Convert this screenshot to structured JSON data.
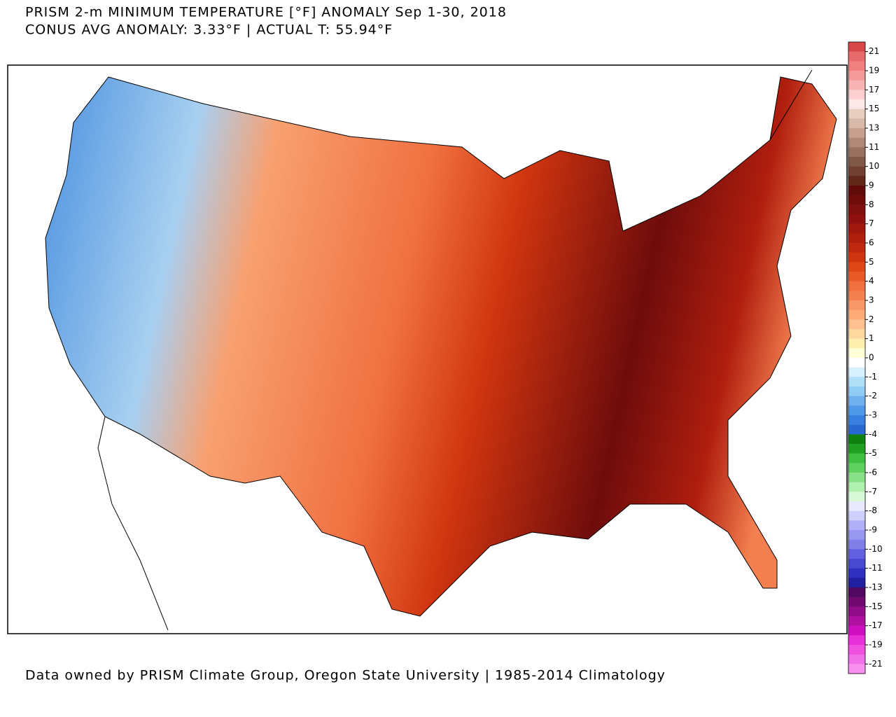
{
  "header": {
    "title": "PRISM 2-m MINIMUM TEMPERATURE [°F] ANOMALY Sep 1-30, 2018",
    "subtitle": "CONUS AVG ANOMALY: 3.33°F | ACTUAL T: 55.94°F"
  },
  "footer": "Data owned by PRISM Climate Group, Oregon State University | 1985-2014 Climatology",
  "legend": {
    "labels": [
      21,
      19,
      17,
      15,
      13,
      11,
      10,
      9,
      8,
      7,
      6,
      5,
      4,
      3,
      2,
      1,
      0,
      -1,
      -2,
      -3,
      -4,
      -5,
      -6,
      -7,
      -8,
      -9,
      -10,
      -11,
      -13,
      -15,
      -17,
      -19,
      -21
    ],
    "colors": [
      "#d84848",
      "#e86a6a",
      "#f08080",
      "#f59a9a",
      "#f8b4b4",
      "#fcd0d0",
      "#fde8e8",
      "#e8cfc0",
      "#d8b8a8",
      "#c8a090",
      "#b08878",
      "#987060",
      "#805848",
      "#704030",
      "#602818",
      "#600a0a",
      "#6e0c0c",
      "#800f0f",
      "#901010",
      "#a01810",
      "#b01e0e",
      "#c02810",
      "#d0350f",
      "#e04818",
      "#e85a28",
      "#f07040",
      "#f48050",
      "#f89868",
      "#fcaa78",
      "#fec090",
      "#ffd8a0",
      "#fff0b0",
      "#ffffd8",
      "#ffffff",
      "#d8f0ff",
      "#b0e0f8",
      "#90ccf4",
      "#70b0ee",
      "#5098e8",
      "#3a80e0",
      "#2868d0",
      "#108010",
      "#20a020",
      "#40c040",
      "#60d060",
      "#88e088",
      "#b0f0b0",
      "#d8f8d8",
      "#e8e8ff",
      "#d0d0ff",
      "#b0b0f8",
      "#9898f0",
      "#8080e8",
      "#6060e0",
      "#4848d0",
      "#3030c0",
      "#2020a0",
      "#500860",
      "#700a70",
      "#900c88",
      "#b010a0",
      "#d010c0",
      "#e830d8",
      "#f050e0",
      "#f070e8",
      "#f890f0"
    ]
  }
}
